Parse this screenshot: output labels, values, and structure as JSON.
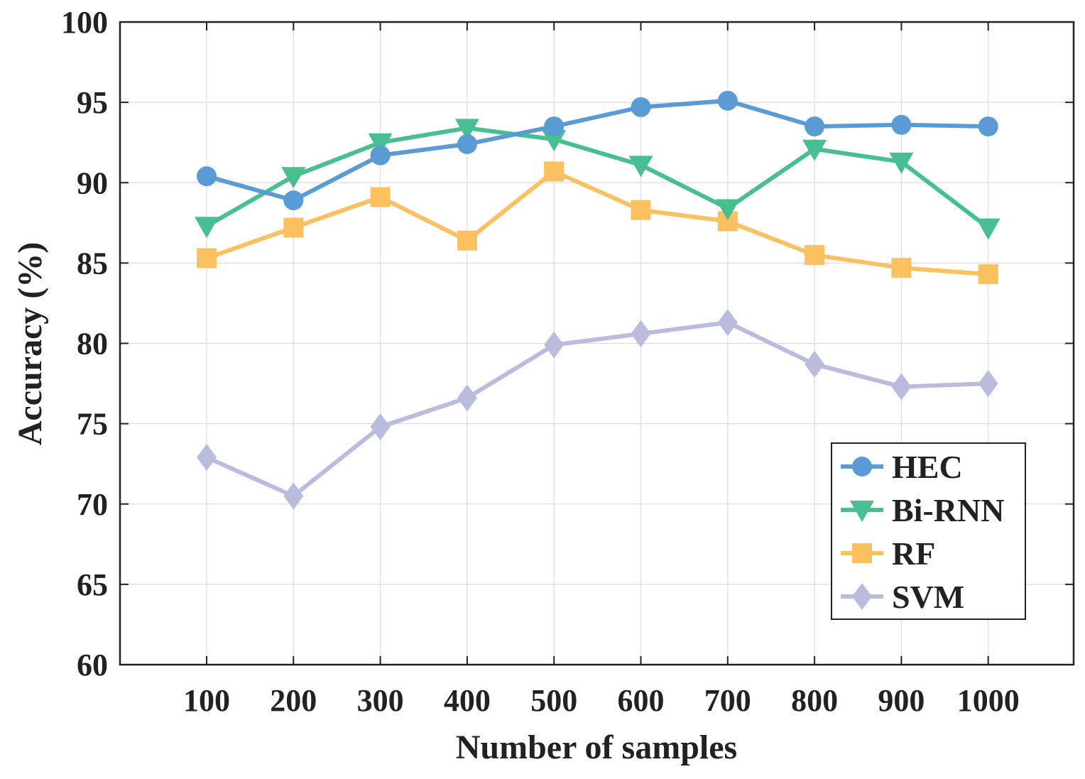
{
  "chart_data": {
    "type": "line",
    "title": "",
    "xlabel": "Number of samples",
    "ylabel": "Accuracy (%)",
    "categories": [
      "100",
      "200",
      "300",
      "400",
      "500",
      "600",
      "700",
      "800",
      "900",
      "1000"
    ],
    "ylim": [
      60,
      100
    ],
    "yticks": [
      "60",
      "65",
      "70",
      "75",
      "80",
      "85",
      "90",
      "95",
      "100"
    ],
    "grid": true,
    "legend_position": "lower-right",
    "series": [
      {
        "name": "HEC",
        "marker": "circle",
        "color": "#5b9bd5",
        "values": [
          90.4,
          88.9,
          91.7,
          92.4,
          93.5,
          94.7,
          95.1,
          93.5,
          93.6,
          93.5
        ]
      },
      {
        "name": "Bi-RNN",
        "marker": "triangle-down",
        "color": "#48bf91",
        "values": [
          87.3,
          90.4,
          92.5,
          93.4,
          92.7,
          91.1,
          88.4,
          92.1,
          91.3,
          87.2
        ]
      },
      {
        "name": "RF",
        "marker": "square",
        "color": "#fbc05f",
        "values": [
          85.3,
          87.2,
          89.1,
          86.4,
          90.7,
          88.3,
          87.6,
          85.5,
          84.7,
          84.3
        ]
      },
      {
        "name": "SVM",
        "marker": "diamond",
        "color": "#b9bcdc",
        "values": [
          72.9,
          70.5,
          74.8,
          76.6,
          79.9,
          80.6,
          81.3,
          78.7,
          77.3,
          77.5
        ]
      }
    ]
  }
}
